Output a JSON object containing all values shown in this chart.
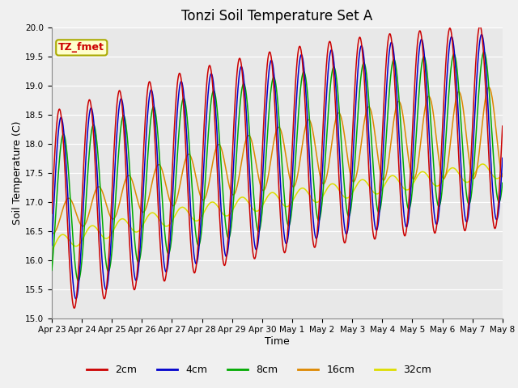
{
  "title": "Tonzi Soil Temperature Set A",
  "xlabel": "Time",
  "ylabel": "Soil Temperature (C)",
  "ylim": [
    15.0,
    20.0
  ],
  "yticks": [
    15.0,
    15.5,
    16.0,
    16.5,
    17.0,
    17.5,
    18.0,
    18.5,
    19.0,
    19.5,
    20.0
  ],
  "line_colors": {
    "2cm": "#cc0000",
    "4cm": "#0000cc",
    "8cm": "#00aa00",
    "16cm": "#dd8800",
    "32cm": "#dddd00"
  },
  "annotation_text": "TZ_fmet",
  "annotation_color": "#cc0000",
  "annotation_bg": "#ffffcc",
  "annotation_edge": "#aaaa00",
  "plot_bg": "#e8e8e8",
  "fig_bg": "#f0f0f0",
  "grid_color": "#ffffff",
  "tick_labels": [
    "Apr 23",
    "Apr 24",
    "Apr 25",
    "Apr 26",
    "Apr 27",
    "Apr 28",
    "Apr 29",
    "Apr 30",
    "May 1",
    "May 2",
    "May 3",
    "May 4",
    "May 5",
    "May 6",
    "May 7",
    "May 8"
  ],
  "title_fontsize": 12,
  "axis_label_fontsize": 9,
  "legend_fontsize": 9,
  "tick_fontsize": 7.5
}
